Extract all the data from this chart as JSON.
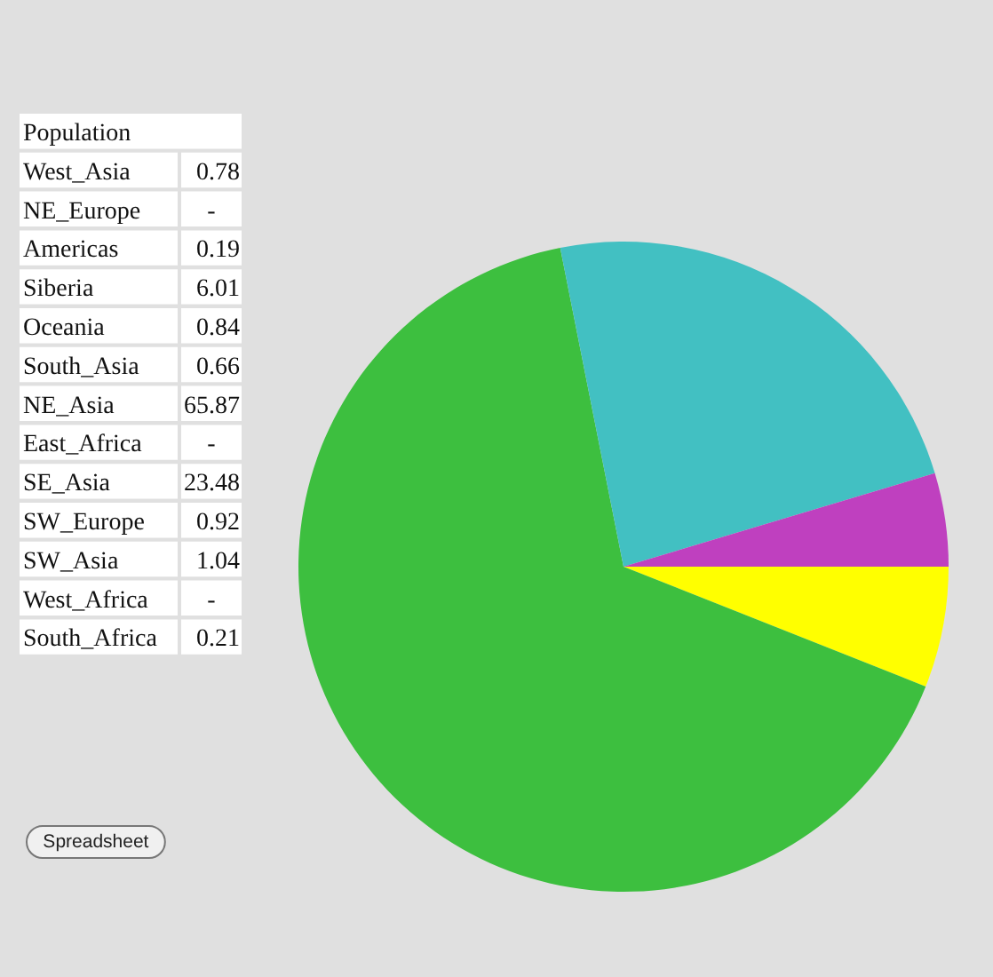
{
  "chart_data": [
    {
      "type": "other",
      "title": "Population",
      "categories": [
        "West_Asia",
        "NE_Europe",
        "Americas",
        "Siberia",
        "Oceania",
        "South_Asia",
        "NE_Asia",
        "East_Africa",
        "SE_Asia",
        "SW_Europe",
        "SW_Asia",
        "West_Africa",
        "South_Africa"
      ],
      "value_labels": [
        "0.78",
        "-",
        "0.19",
        "6.01",
        "0.84",
        "0.66",
        "65.87",
        "-",
        "23.48",
        "0.92",
        "1.04",
        "-",
        "0.21"
      ],
      "annotations": [
        "Spreadsheet"
      ]
    },
    {
      "type": "pie",
      "categories": [
        null,
        null,
        null,
        null
      ],
      "values": [
        6.01,
        65.87,
        23.48,
        4.64
      ],
      "colors": [
        "#ffff00",
        "#3dbf3f",
        "#42c0c2",
        "#bf40bf"
      ]
    }
  ]
}
